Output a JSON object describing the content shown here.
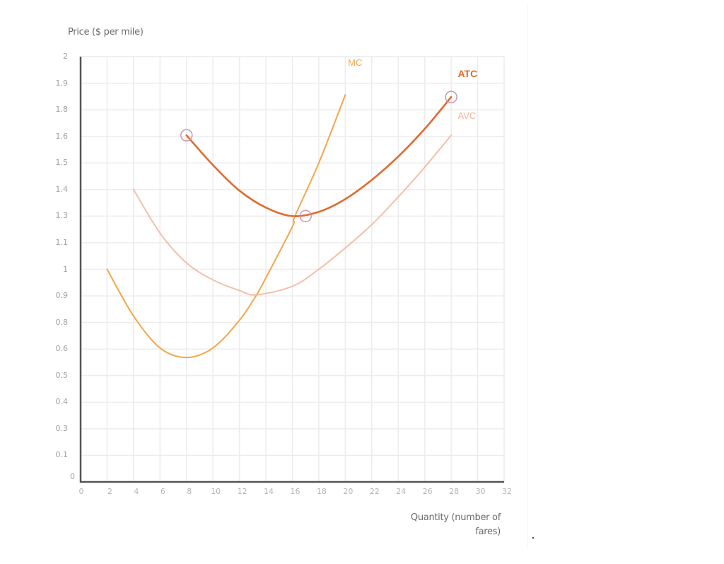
{
  "chart_data": {
    "type": "line",
    "title": "",
    "ylabel": "Price ($ per mile)",
    "xlabel": "Quantity (number of fares)",
    "xlabel_lines": [
      "Quantity (number of",
      "fares)"
    ],
    "xlim": [
      0,
      32
    ],
    "ylim": [
      0,
      2
    ],
    "grid": true,
    "x_ticks": [
      "0",
      "2",
      "4",
      "6",
      "8",
      "10",
      "12",
      "14",
      "16",
      "18",
      "20",
      "22",
      "24",
      "26",
      "28",
      "30",
      "32"
    ],
    "y_ticks": [
      "0",
      "0.1",
      "0.3",
      "0.4",
      "0.5",
      "0.6",
      "0.8",
      "0.9",
      "1",
      "1.1",
      "1.3",
      "1.4",
      "1.5",
      "1.6",
      "1.8",
      "1.9",
      "2"
    ],
    "y_ticks_note": "17 evenly spaced gridlines; true spacing 0.125 per row",
    "series": [
      {
        "name": "MC",
        "color": "#f3a64a",
        "label_pos": [
          20.2,
          1.97
        ],
        "points": [
          [
            2,
            1.0
          ],
          [
            4,
            0.78
          ],
          [
            6,
            0.63
          ],
          [
            8,
            0.585
          ],
          [
            10,
            0.63
          ],
          [
            12,
            0.76
          ],
          [
            13.3,
            0.88
          ],
          [
            14,
            0.96
          ],
          [
            16,
            1.2
          ],
          [
            16.2,
            1.25
          ],
          [
            18,
            1.5
          ],
          [
            20,
            1.82
          ]
        ]
      },
      {
        "name": "AVC",
        "color": "#f2b49a",
        "label_pos": [
          28.5,
          1.72
        ],
        "points": [
          [
            4,
            1.375
          ],
          [
            6,
            1.17
          ],
          [
            8,
            1.03
          ],
          [
            10,
            0.95
          ],
          [
            12,
            0.9
          ],
          [
            13.3,
            0.88
          ],
          [
            16,
            0.92
          ],
          [
            18,
            1.0
          ],
          [
            20,
            1.1
          ],
          [
            22,
            1.21
          ],
          [
            24,
            1.34
          ],
          [
            26,
            1.48
          ],
          [
            28,
            1.63
          ]
        ]
      },
      {
        "name": "ATC",
        "color": "#e16a2c",
        "label_pos": [
          28.5,
          1.92
        ],
        "points": [
          [
            8,
            1.63
          ],
          [
            10,
            1.49
          ],
          [
            12,
            1.37
          ],
          [
            14,
            1.29
          ],
          [
            16,
            1.25
          ],
          [
            18,
            1.27
          ],
          [
            20,
            1.33
          ],
          [
            22,
            1.42
          ],
          [
            24,
            1.53
          ],
          [
            26,
            1.66
          ],
          [
            28,
            1.81
          ]
        ]
      }
    ],
    "annotations": [
      {
        "type": "circle",
        "x": 8,
        "y": 1.63,
        "color": "#c895b4"
      },
      {
        "type": "circle",
        "x": 17,
        "y": 1.25,
        "color": "#c895b4"
      },
      {
        "type": "circle",
        "x": 28,
        "y": 1.81,
        "color": "#c895b4"
      }
    ]
  }
}
